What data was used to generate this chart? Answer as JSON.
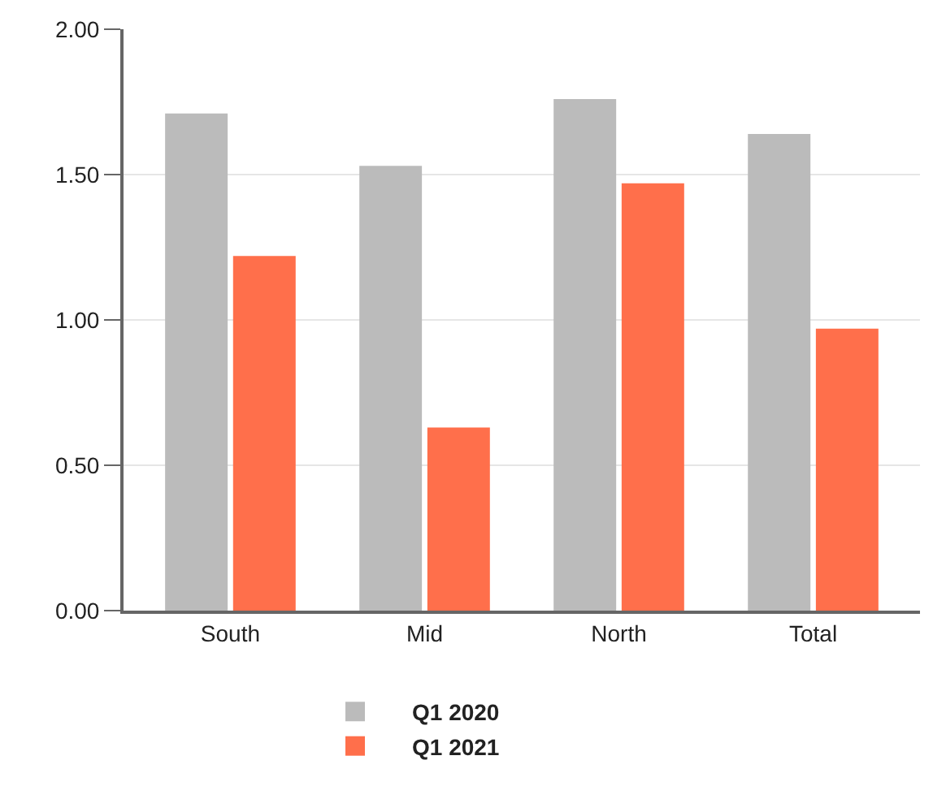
{
  "chart_data": {
    "type": "bar",
    "categories": [
      "South",
      "Mid",
      "North",
      "Total"
    ],
    "series": [
      {
        "name": "Q1 2020",
        "color": "#bbbbbb",
        "values": [
          1.71,
          1.53,
          1.76,
          1.64
        ]
      },
      {
        "name": "Q1 2021",
        "color": "#ff6f4b",
        "values": [
          1.22,
          0.63,
          1.47,
          0.97
        ]
      }
    ],
    "ylim": [
      0,
      2
    ],
    "yticks": [
      {
        "value": 0,
        "label": "0.00"
      },
      {
        "value": 0.5,
        "label": "0.50"
      },
      {
        "value": 1,
        "label": "1.00"
      },
      {
        "value": 1.5,
        "label": "1.50"
      },
      {
        "value": 2,
        "label": "2.00"
      }
    ],
    "grid": "y",
    "legend": "bottom"
  }
}
